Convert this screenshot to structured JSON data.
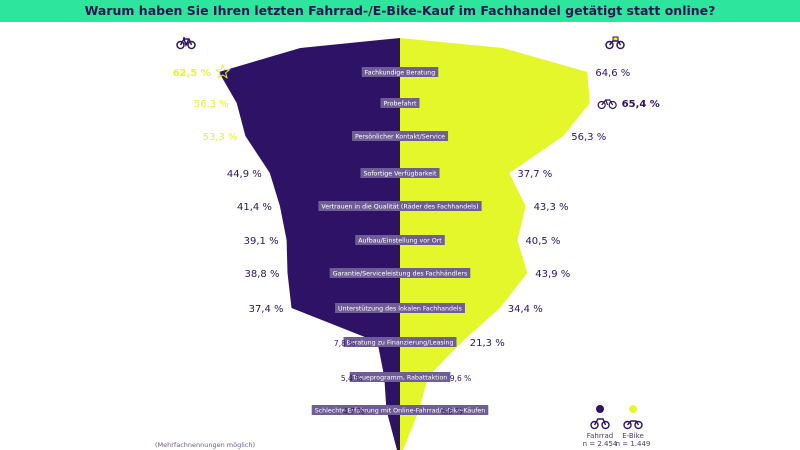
{
  "title": "Warum haben Sie Ihren letzten Fahrrad-/E-Bike-Kauf im Fachhandel getätigt statt online?",
  "footnote": "(Mehrfachnennungen möglich)",
  "colors": {
    "topbar": "#2ee59d",
    "fahrrad": "#2d1265",
    "ebike": "#e4f72a",
    "highlight": "#e4f72a",
    "labelbox": "#6f5e96"
  },
  "legend": [
    {
      "name": "Fahrrad",
      "n": "n = 2.454",
      "color": "#2d1265"
    },
    {
      "name": "E-Bike",
      "n": "n = 1.449",
      "color": "#e4f72a"
    }
  ],
  "chart_data": {
    "type": "bar",
    "categories": [
      "Fachkundige Beratung",
      "Probefahrt",
      "Persönlicher Kontakt/Service",
      "Sofortige Verfügbarkeit",
      "Vertrauen in die Qualität (Räder des Fachhandels)",
      "Aufbau/Einstellung vor Ort",
      "Garantie/Serviceleistung des Fachhändlers",
      "Unterstützung des lokalen Fachhandels",
      "Beratung zu Finanzierung/Leasing",
      "Treueprogramm, Rabattaktion",
      "Schlechte Erfahrung mit Online-Fahrrad/E-Bike-Käufen"
    ],
    "series": [
      {
        "name": "Fahrrad",
        "values": [
          62.5,
          56.3,
          53.3,
          44.9,
          41.4,
          39.1,
          38.8,
          37.4,
          7.8,
          5.4,
          4.7
        ],
        "labels": [
          "62,5 %",
          "56,3 %",
          "53,3 %",
          "44,9 %",
          "41,4 %",
          "39,1 %",
          "38,8 %",
          "37,4 %",
          "7,8 %",
          "5,4 %",
          "4,7 %"
        ]
      },
      {
        "name": "E-Bike",
        "values": [
          64.6,
          65.4,
          56.3,
          37.7,
          43.3,
          40.5,
          43.9,
          34.4,
          21.3,
          9.6,
          6.6
        ],
        "labels": [
          "64,6 %",
          "65,4 %",
          "56,3 %",
          "37,7 %",
          "43,3 %",
          "40,5 %",
          "43,9 %",
          "34,4 %",
          "21,3 %",
          "9,6 %",
          "6,6 %"
        ]
      }
    ],
    "highlights": {
      "Fahrrad": 0,
      "E-Bike": 1
    }
  }
}
